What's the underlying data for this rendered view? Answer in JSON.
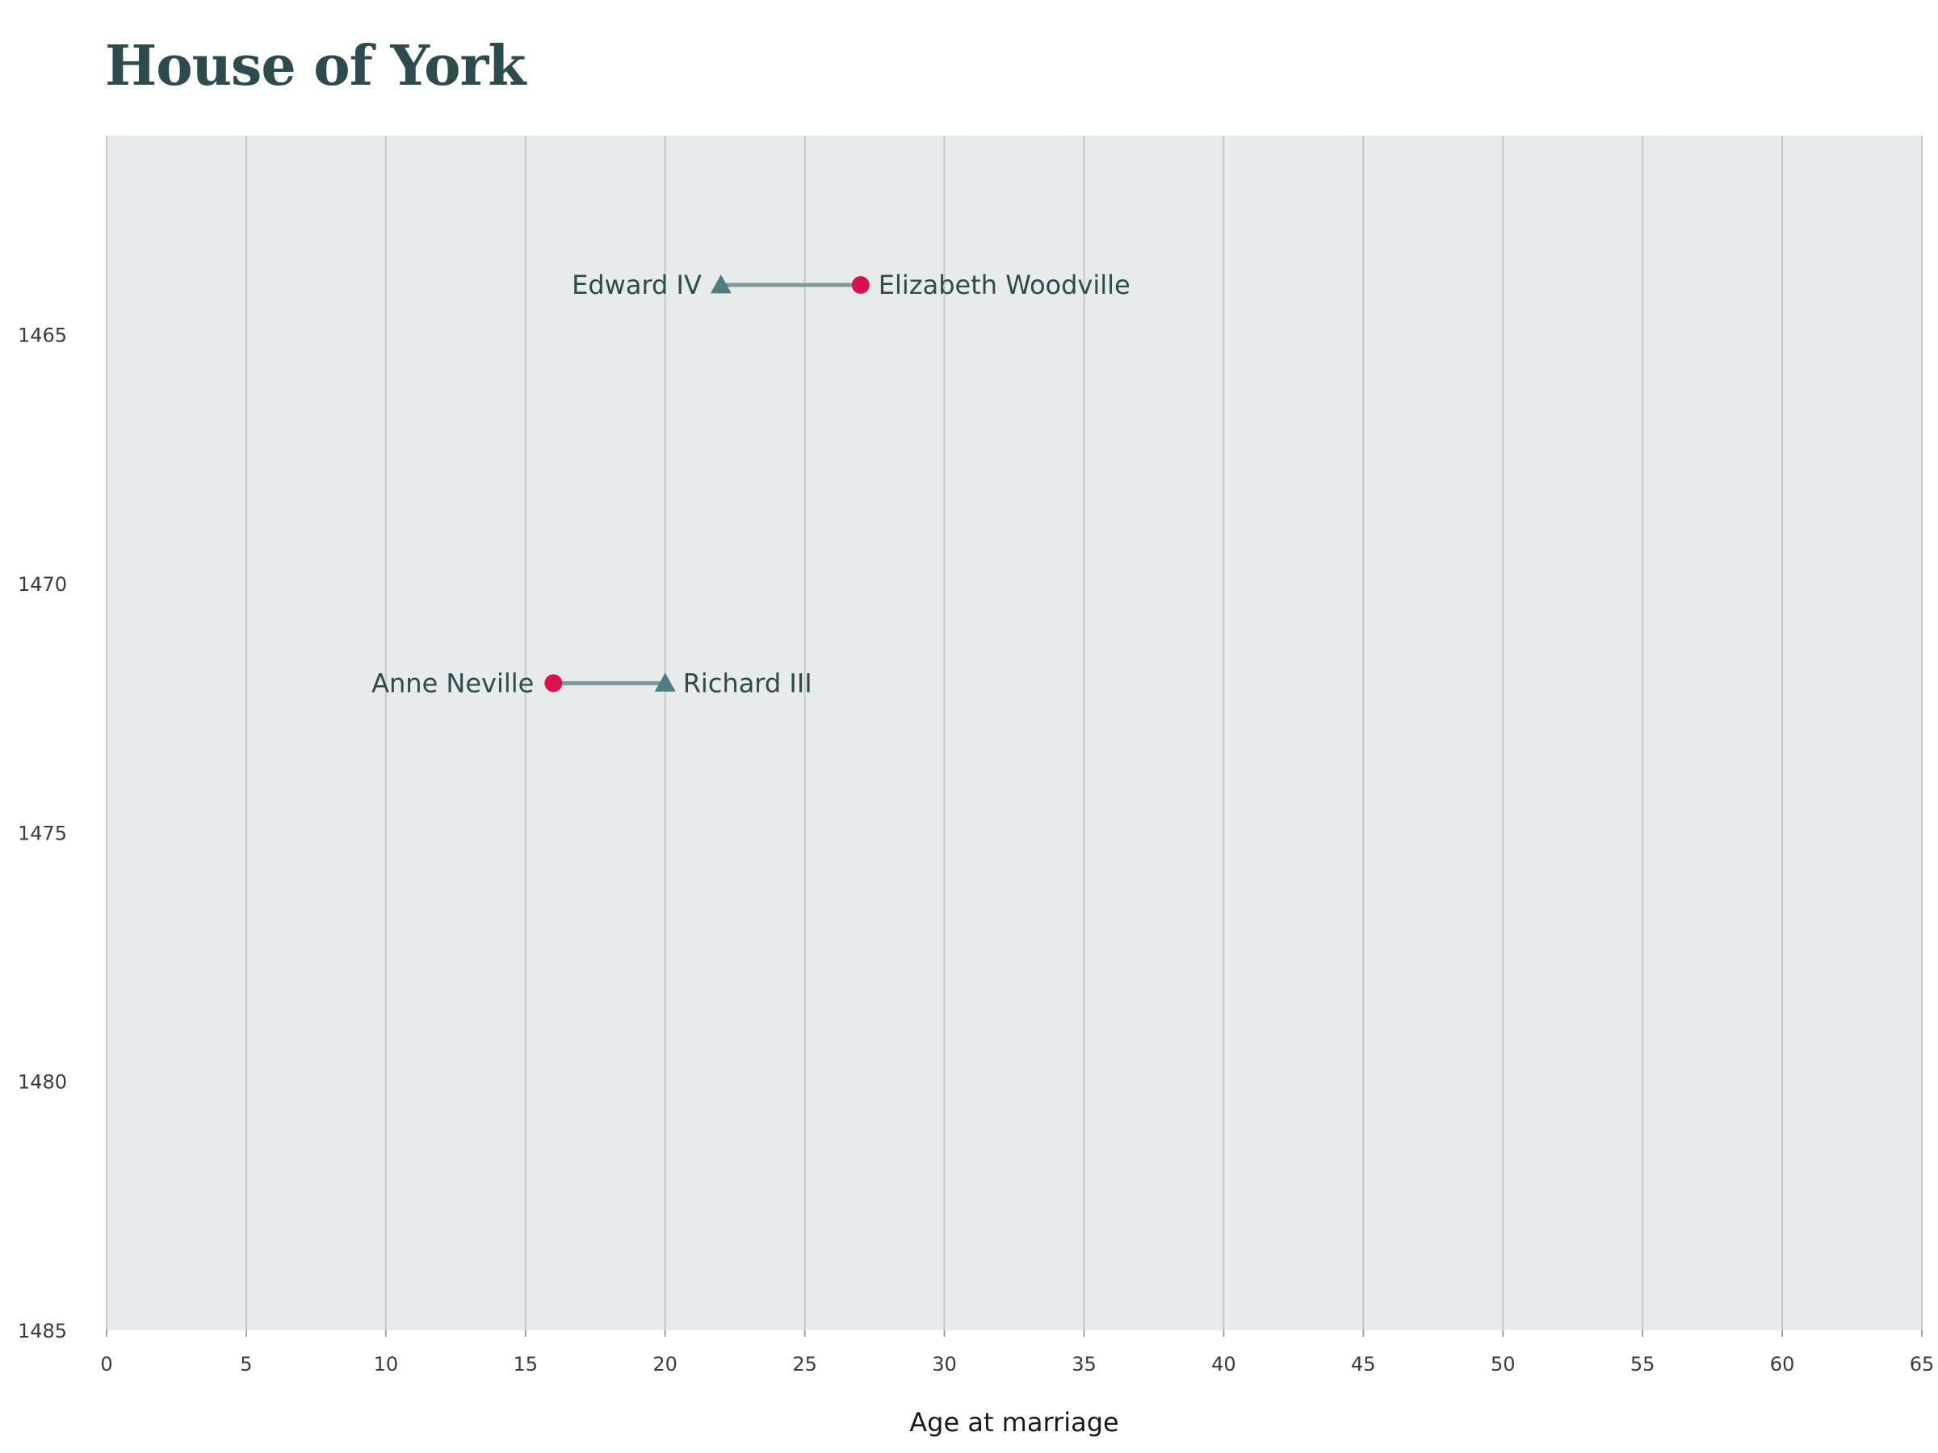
{
  "chart_data": {
    "type": "dumbbell",
    "title": "House of York",
    "xlabel": "Age at marriage",
    "ylabel": "",
    "xlim": [
      0,
      65
    ],
    "ylim": [
      1461,
      1485
    ],
    "x_ticks": [
      0,
      5,
      10,
      15,
      20,
      25,
      30,
      35,
      40,
      45,
      50,
      55,
      60,
      65
    ],
    "y_ticks": [
      1465,
      1470,
      1475,
      1480,
      1485
    ],
    "grid": "vertical",
    "background": "#e8ebec",
    "colors": {
      "king": "#4f7d7f",
      "queen": "#d9114f",
      "connector": "#809998",
      "text": "#2d4a4d"
    },
    "marriages": [
      {
        "year": 1464,
        "king": {
          "name": "Edward IV",
          "age": 22,
          "marker": "triangle"
        },
        "queen": {
          "name": "Elizabeth Woodville",
          "age": 27,
          "marker": "circle"
        }
      },
      {
        "year": 1472,
        "king": {
          "name": "Richard III",
          "age": 20,
          "marker": "triangle"
        },
        "queen": {
          "name": "Anne Neville",
          "age": 16,
          "marker": "circle"
        }
      }
    ]
  }
}
